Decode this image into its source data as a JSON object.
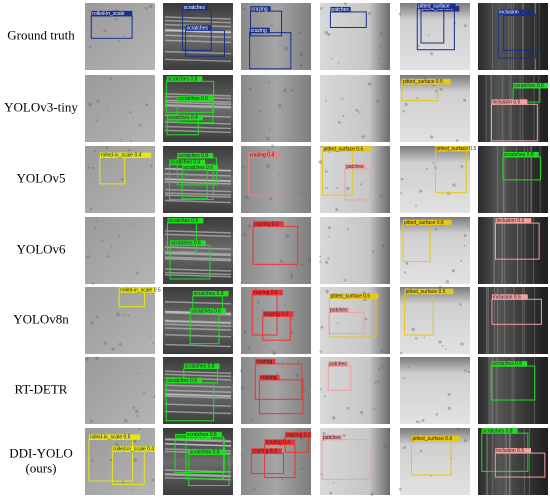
{
  "rows": [
    {
      "label": "Ground truth",
      "cells": [
        [
          {
            "text": "rolled-in_scale",
            "color": "#1a2f8a"
          }
        ],
        [
          {
            "text": "scratches",
            "color": "#1a2f8a"
          },
          {
            "text": "scratches",
            "color": "#1a2f8a"
          }
        ],
        [
          {
            "text": "crazing",
            "color": "#1a2f8a"
          },
          {
            "text": "crazing",
            "color": "#1a2f8a"
          }
        ],
        [
          {
            "text": "patches",
            "color": "#1a2f8a"
          }
        ],
        [
          {
            "text": "pitted_surface",
            "color": "#1a2f8a"
          },
          {
            "text": "pitted_surface",
            "color": "#1a2f8a"
          }
        ],
        [
          {
            "text": "inclusion",
            "color": "#1a2f8a"
          },
          {
            "text": "inclusion",
            "color": "#1a2f8a"
          }
        ]
      ]
    },
    {
      "label": "YOLOv3-tiny",
      "cells": [
        [],
        [
          {
            "text": "scratches 0.8",
            "color": "#22dd22"
          },
          {
            "text": "scratches 0.6",
            "color": "#22dd22"
          },
          {
            "text": "scratches 0.4",
            "color": "#22dd22"
          }
        ],
        [],
        [],
        [
          {
            "text": "pitted_surface 0.5",
            "color": "#e6c619"
          }
        ],
        [
          {
            "text": "scratches 0.8",
            "color": "#22dd22"
          },
          {
            "text": "inclusion 0.5",
            "color": "#f2a0a0"
          }
        ]
      ]
    },
    {
      "label": "YOLOv5",
      "cells": [
        [
          {
            "text": "rolled-in_scale 0.4",
            "color": "#e6e619"
          }
        ],
        [
          {
            "text": "scratches 0.8",
            "color": "#22dd22"
          },
          {
            "text": "scratches 0.6",
            "color": "#22dd22"
          },
          {
            "text": "scratches 0.4",
            "color": "#22dd22"
          }
        ],
        [
          {
            "text": "crazing 0.4",
            "color": "#f08080"
          }
        ],
        [
          {
            "text": "pitted_surface 0.5",
            "color": "#e6c619"
          },
          {
            "text": "patches",
            "color": "#f2a0a0"
          }
        ],
        [
          {
            "text": "pitted_surface 0.5",
            "color": "#e6c619"
          }
        ],
        [
          {
            "text": "scratches 0.8",
            "color": "#22dd22"
          }
        ]
      ]
    },
    {
      "label": "YOLOv6",
      "cells": [
        [],
        [
          {
            "text": "scratches 0.8",
            "color": "#22dd22"
          },
          {
            "text": "scratches 0.6",
            "color": "#22dd22"
          }
        ],
        [
          {
            "text": "crazing 0.3",
            "color": "#f03030"
          }
        ],
        [],
        [
          {
            "text": "pitted_surface 0.6",
            "color": "#e6c619"
          }
        ],
        [
          {
            "text": "inclusion 0.5",
            "color": "#f2a0a0"
          }
        ]
      ]
    },
    {
      "label": "YOLOv8n",
      "cells": [
        [
          {
            "text": "rolled-in_scale 0.5",
            "color": "#e6e619"
          }
        ],
        [
          {
            "text": "scratches 0.8",
            "color": "#22dd22"
          },
          {
            "text": "scratches 0.6",
            "color": "#22dd22"
          }
        ],
        [
          {
            "text": "crazing 0.6",
            "color": "#f03030"
          },
          {
            "text": "crazing 0.6",
            "color": "#f03030"
          }
        ],
        [
          {
            "text": "pitted_surface 0.5",
            "color": "#e6c619"
          },
          {
            "text": "patches",
            "color": "#f2a0a0"
          }
        ],
        [
          {
            "text": "pitted_surface 0.5",
            "color": "#e6c619"
          }
        ],
        [
          {
            "text": "inclusion 0.5",
            "color": "#f2a0a0"
          }
        ]
      ]
    },
    {
      "label": "RT-DETR",
      "cells": [
        [],
        [
          {
            "text": "scratches 0.8",
            "color": "#22dd22"
          },
          {
            "text": "scratches 0.6",
            "color": "#22dd22"
          }
        ],
        [
          {
            "text": "crazing",
            "color": "#f03030"
          },
          {
            "text": "crazing",
            "color": "#f03030"
          }
        ],
        [
          {
            "text": "patches",
            "color": "#f2a0a0"
          }
        ],
        [],
        [
          {
            "text": "scratches 0.8",
            "color": "#22dd22"
          }
        ]
      ]
    },
    {
      "label": "DDI-YOLO",
      "label2": "(ours)",
      "cells": [
        [
          {
            "text": "rolled-in_scale 0.5",
            "color": "#e6e619"
          },
          {
            "text": "rolled-in_scale 0.4",
            "color": "#e6e619"
          }
        ],
        [
          {
            "text": "scratches 0.9",
            "color": "#22dd22"
          },
          {
            "text": "scratches 0.8",
            "color": "#22dd22"
          },
          {
            "text": "scratches 0.8",
            "color": "#22dd22"
          }
        ],
        [
          {
            "text": "crazing 0.3",
            "color": "#f03030"
          },
          {
            "text": "crazing 0.3",
            "color": "#f03030"
          },
          {
            "text": "crazing 0.4",
            "color": "#f03030"
          }
        ],
        [
          {
            "text": "patches",
            "color": "#f2a0a0"
          }
        ],
        [
          {
            "text": "pitted_surface 0.6",
            "color": "#e6c619"
          }
        ],
        [
          {
            "text": "scratches 0.8",
            "color": "#22dd22"
          },
          {
            "text": "inclusion 0.5",
            "color": "#f2a0a0"
          }
        ]
      ]
    }
  ]
}
